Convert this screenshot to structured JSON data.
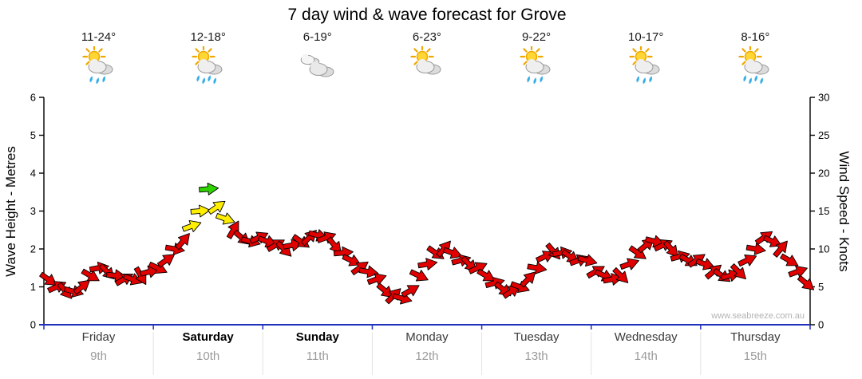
{
  "chart_data": {
    "type": "scatter",
    "title": "7 day wind & wave forecast for Grove",
    "watermark": "www.seabreeze.com.au",
    "grid": false,
    "left_axis": {
      "label": "Wave Height - Metres",
      "min": 0,
      "max": 6,
      "ticks": [
        "0",
        "1",
        "2",
        "3",
        "4",
        "5",
        "6"
      ]
    },
    "right_axis": {
      "label": "Wind Speed - Knots",
      "min": 0,
      "max": 30,
      "ticks": [
        "0",
        "5",
        "10",
        "15",
        "20",
        "25",
        "30"
      ]
    },
    "arrow_colors": {
      "light": "#e00000",
      "moderate": "#ffee00",
      "fresh": "#2fd400"
    },
    "color_thresholds_knots": {
      "moderate": 12.8,
      "fresh": 17
    },
    "days": [
      {
        "name": "Friday",
        "date": "9th",
        "temps": "11-24°",
        "icon": "sun-cloud-rain",
        "weekend": false,
        "wind_knots": [
          6,
          5,
          4.5,
          4.4,
          5,
          6.5,
          7.5,
          7,
          6.5,
          6,
          6,
          6.5,
          7
        ],
        "wind_dirs": [
          35,
          -25,
          50,
          15,
          -40,
          30,
          -10,
          45,
          5,
          -30,
          20,
          60,
          -15
        ]
      },
      {
        "name": "Saturday",
        "date": "10th",
        "temps": "12-18°",
        "icon": "sun-cloud-rain-heavy",
        "weekend": true,
        "wind_knots": [
          7.5,
          8.5,
          10,
          11,
          13,
          15,
          17.9,
          15.5,
          14,
          12.5,
          11.5,
          11,
          11.5
        ],
        "wind_dirs": [
          25,
          -35,
          10,
          -50,
          -20,
          -5,
          -5,
          -35,
          20,
          -60,
          40,
          15,
          -25
        ]
      },
      {
        "name": "Sunday",
        "date": "11th",
        "temps": "6-19°",
        "icon": "cloudy",
        "weekend": true,
        "wind_knots": [
          11,
          10.5,
          10,
          10.5,
          11,
          11.5,
          11.8,
          11.5,
          10.5,
          9.5,
          8.5,
          7.5,
          7
        ],
        "wind_dirs": [
          20,
          -30,
          45,
          -10,
          35,
          -45,
          15,
          -20,
          50,
          -5,
          25,
          -35,
          10
        ]
      },
      {
        "name": "Monday",
        "date": "12th",
        "temps": "6-23°",
        "icon": "sun-cloud",
        "weekend": false,
        "wind_knots": [
          6,
          4.5,
          3.8,
          3.5,
          4.5,
          6.5,
          8,
          9.5,
          10,
          9.5,
          8.5,
          8,
          7.5
        ],
        "wind_dirs": [
          -20,
          40,
          -45,
          15,
          -30,
          25,
          -10,
          35,
          -50,
          20,
          -15,
          45,
          -25
        ]
      },
      {
        "name": "Tuesday",
        "date": "13th",
        "temps": "9-22°",
        "icon": "sun-cloud-rain",
        "weekend": false,
        "wind_knots": [
          6.5,
          5.5,
          4.7,
          4.4,
          5,
          6,
          7.5,
          9,
          9.7,
          9.5,
          9,
          8.5,
          8.5
        ],
        "wind_dirs": [
          30,
          -15,
          40,
          -35,
          20,
          -45,
          10,
          -25,
          50,
          -10,
          35,
          -20,
          15
        ]
      },
      {
        "name": "Wednesday",
        "date": "14th",
        "temps": "10-17°",
        "icon": "sun-cloud-rain",
        "weekend": false,
        "wind_knots": [
          7,
          6.5,
          6,
          6.5,
          8,
          9.5,
          10.5,
          11,
          10.5,
          10,
          9,
          8.5,
          8.5
        ],
        "wind_dirs": [
          -30,
          25,
          -10,
          45,
          -20,
          35,
          -40,
          15,
          -25,
          50,
          -15,
          30,
          -35
        ]
      },
      {
        "name": "Thursday",
        "date": "15th",
        "temps": "8-16°",
        "icon": "sun-cloud-rain-heavy",
        "weekend": false,
        "wind_knots": [
          8,
          7,
          6.5,
          6.5,
          7,
          8.5,
          10,
          11.5,
          11,
          10,
          8.5,
          7,
          5.5
        ],
        "wind_dirs": [
          20,
          -40,
          35,
          -15,
          45,
          -25,
          10,
          -35,
          25,
          -50,
          30,
          -20,
          40
        ]
      }
    ]
  }
}
